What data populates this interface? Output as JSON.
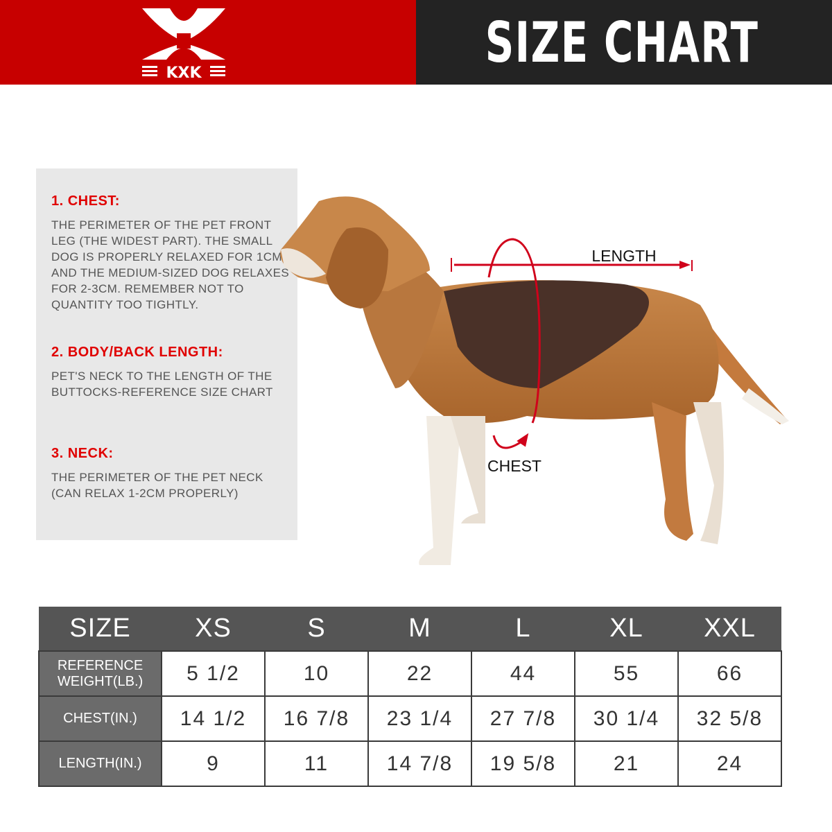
{
  "brand": {
    "name": "KXK",
    "colors": {
      "red": "#c70000",
      "dark": "#232323"
    }
  },
  "header": {
    "title": "SIZE CHART"
  },
  "info": [
    {
      "heading": "1. CHEST:",
      "text": "THE PERIMETER OF THE PET FRONT LEG (THE WIDEST PART). THE SMALL DOG IS PROPERLY RELAXED FOR 1CM, AND THE MEDIUM-SIZED DOG RELAXES FOR 2-3CM. REMEMBER NOT TO QUANTITY TOO TIGHTLY."
    },
    {
      "heading": "2. BODY/BACK LENGTH:",
      "text": "PET'S NECK TO THE LENGTH OF THE BUTTOCKS-REFERENCE SIZE CHART"
    },
    {
      "heading": "3. NECK:",
      "text": "THE PERIMETER OF THE PET NECK (CAN RELAX 1-2CM PROPERLY)"
    }
  ],
  "diagram": {
    "length_label": "LENGTH",
    "chest_label": "CHEST"
  },
  "table": {
    "headers": [
      "SIZE",
      "XS",
      "S",
      "M",
      "L",
      "XL",
      "XXL"
    ],
    "rows": [
      {
        "label": "REFERENCE WEIGHT(LB.)",
        "values": [
          "5 1/2",
          "10",
          "22",
          "44",
          "55",
          "66"
        ]
      },
      {
        "label": "CHEST(IN.)",
        "values": [
          "14 1/2",
          "16 7/8",
          "23 1/4",
          "27 7/8",
          "30 1/4",
          "32 5/8"
        ]
      },
      {
        "label": "LENGTH(IN.)",
        "values": [
          "9",
          "11",
          "14 7/8",
          "19 5/8",
          "21",
          "24"
        ]
      }
    ]
  }
}
